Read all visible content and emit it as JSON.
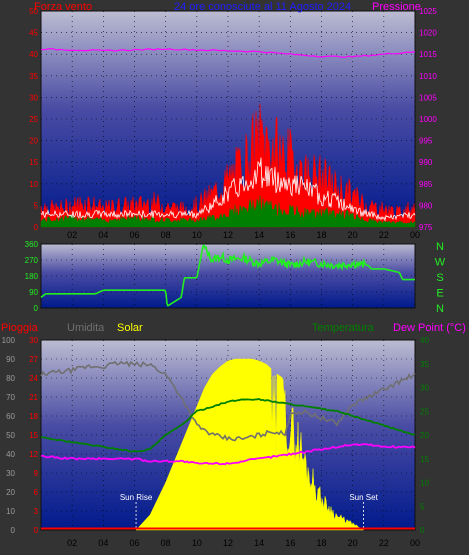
{
  "colors": {
    "background": "#333333",
    "gradient_top": "#bcbcd2",
    "gradient_bottom": "#001a8c",
    "wind": "#ff0000",
    "gust": "#ffffff",
    "avg_wind": "#008000",
    "pressure": "#ff00ff",
    "direction": "#22ee22",
    "rain": "#ff0000",
    "humidity": "#707070",
    "solar": "#ffff00",
    "temperature": "#008000",
    "dewpoint": "#ff00ff",
    "title": "#2020ff"
  },
  "chart_data": [
    {
      "id": "wind-pressure",
      "type": "area",
      "title": "24 ore conosciute al 11 Agosto 2024",
      "left_label": "Forza vento",
      "right_label": "Pressione",
      "x_ticks": [
        "02",
        "04",
        "06",
        "08",
        "10",
        "12",
        "14",
        "16",
        "18",
        "20",
        "22",
        "00"
      ],
      "left_ticks": [
        "0",
        "5",
        "10",
        "15",
        "20",
        "25",
        "30",
        "35",
        "40",
        "45",
        "50"
      ],
      "right_ticks": [
        "975",
        "980",
        "985",
        "990",
        "995",
        "1000",
        "1005",
        "1010",
        "1015",
        "1020",
        "1025"
      ],
      "ylim_left": [
        0,
        50
      ],
      "ylim_right": [
        975,
        1025
      ],
      "grid": true,
      "series": [
        {
          "id": "wind_max",
          "hours": [
            0,
            1,
            2,
            3,
            4,
            5,
            6,
            7,
            8,
            9,
            10,
            11,
            12,
            13,
            14,
            15,
            16,
            17,
            18,
            19,
            20,
            21,
            22,
            23,
            24
          ],
          "values": [
            6,
            5,
            6,
            7,
            5,
            6,
            6,
            7,
            6,
            5,
            6,
            9,
            13,
            18,
            25,
            22,
            19,
            15,
            14,
            11,
            9,
            6,
            5,
            4,
            6
          ]
        },
        {
          "id": "wind_gust",
          "hours": [
            0,
            2,
            4,
            6,
            8,
            10,
            11,
            12,
            13,
            14,
            15,
            16,
            17,
            18,
            19,
            20,
            21,
            22,
            24
          ],
          "values": [
            3,
            3,
            3,
            3,
            3,
            3,
            5,
            8,
            10,
            13,
            11,
            10,
            9,
            7,
            6,
            4,
            3,
            2,
            3
          ]
        },
        {
          "id": "wind_avg",
          "hours": [
            0,
            2,
            4,
            6,
            8,
            10,
            11,
            12,
            13,
            14,
            15,
            16,
            17,
            18,
            19,
            20,
            21,
            22,
            24
          ],
          "values": [
            1.5,
            2,
            1.5,
            2,
            1.5,
            1.5,
            2,
            3,
            4,
            5,
            4,
            3.5,
            3,
            3,
            3,
            2.5,
            1.5,
            1,
            1
          ]
        },
        {
          "id": "pressure",
          "hours": [
            0,
            2,
            4,
            6,
            8,
            10,
            12,
            14,
            16,
            18,
            20,
            22,
            24
          ],
          "values": [
            1016.2,
            1016.0,
            1015.8,
            1016.0,
            1016.2,
            1016.0,
            1015.8,
            1015.6,
            1015.0,
            1014.5,
            1014.4,
            1015.0,
            1015.6
          ]
        }
      ]
    },
    {
      "id": "direction",
      "type": "line",
      "left_ticks": [
        "0",
        "90",
        "180",
        "270",
        "360"
      ],
      "compass": [
        "N",
        "W",
        "S",
        "E",
        "N"
      ],
      "ylim": [
        0,
        360
      ],
      "grid": true,
      "series": [
        {
          "id": "direction",
          "hours": [
            0,
            0.3,
            2,
            3.5,
            4,
            6,
            7,
            8,
            8.1,
            9,
            9.2,
            10,
            10.4,
            11,
            11.5,
            12,
            13,
            14,
            15,
            16,
            17,
            18,
            19,
            20,
            21,
            21.2,
            22,
            23,
            23.2,
            24
          ],
          "values": [
            60,
            80,
            80,
            80,
            100,
            100,
            100,
            100,
            10,
            60,
            170,
            170,
            350,
            270,
            290,
            270,
            280,
            250,
            270,
            240,
            260,
            250,
            240,
            250,
            240,
            220,
            220,
            200,
            160,
            160
          ]
        }
      ]
    },
    {
      "id": "weather",
      "type": "area",
      "legend": [
        "Pioggia",
        "Umidita",
        "Solar",
        "Temperatura",
        "Dew Point (°C)"
      ],
      "x_ticks": [
        "02",
        "04",
        "06",
        "08",
        "10",
        "12",
        "14",
        "16",
        "18",
        "20",
        "22",
        "00"
      ],
      "ticks_humidity": [
        "0",
        "10",
        "20",
        "30",
        "40",
        "50",
        "60",
        "70",
        "80",
        "90",
        "100"
      ],
      "ticks_rain": [
        "0",
        "3",
        "6",
        "9",
        "12",
        "15",
        "18",
        "21",
        "24",
        "27",
        "30"
      ],
      "ticks_temp": [
        "0",
        "5",
        "10",
        "15",
        "20",
        "25",
        "30",
        "35",
        "40"
      ],
      "ylim_humidity": [
        0,
        100
      ],
      "ylim_rain": [
        0,
        30
      ],
      "ylim_temp": [
        0,
        40
      ],
      "sun_rise_label": "Sun Rise",
      "sun_set_label": "Sun Set",
      "sun_rise_hour": 6.1,
      "sun_set_hour": 20.7,
      "grid": true,
      "series": [
        {
          "id": "humidity",
          "hours": [
            0,
            1,
            2,
            3,
            4,
            5,
            6,
            7,
            8,
            9,
            10,
            11,
            12,
            13,
            14,
            15,
            15.7,
            16,
            17,
            18,
            19,
            20,
            21,
            22,
            23,
            24
          ],
          "values": [
            82,
            83,
            84,
            86,
            86,
            88,
            87,
            87,
            82,
            70,
            55,
            50,
            48,
            48,
            50,
            52,
            50,
            62,
            62,
            59,
            56,
            66,
            70,
            74,
            78,
            82
          ]
        },
        {
          "id": "temperature",
          "hours": [
            0,
            2,
            4,
            6,
            7,
            8,
            9,
            10,
            11,
            12,
            13,
            14,
            15,
            16,
            17,
            18,
            19,
            20,
            21,
            22,
            23,
            24
          ],
          "values": [
            19.5,
            18.5,
            17.5,
            16.5,
            17,
            20,
            22,
            25,
            26,
            27,
            27.5,
            27.5,
            27,
            26.5,
            26,
            25.5,
            25,
            24,
            23,
            22,
            21,
            20
          ]
        },
        {
          "id": "dewpoint",
          "hours": [
            0,
            2,
            4,
            6,
            7,
            8,
            9,
            10,
            11,
            12,
            13,
            14,
            15,
            16,
            17,
            18,
            19,
            20,
            21,
            22,
            23,
            24
          ],
          "values": [
            15.5,
            15,
            15,
            15,
            14.5,
            14.5,
            14.5,
            14,
            14,
            14,
            14.5,
            15,
            15.5,
            16,
            16.5,
            17,
            17.5,
            18,
            18,
            17.5,
            17.5,
            17.5
          ]
        },
        {
          "id": "solar",
          "hours": [
            6.1,
            7,
            8,
            9,
            10,
            10.5,
            11,
            11.5,
            12,
            12.5,
            13,
            13.5,
            14,
            14.5,
            15,
            15.5,
            16,
            16.5,
            17,
            18,
            19,
            20,
            20.7
          ],
          "values": [
            0,
            8,
            25,
            45,
            65,
            75,
            82,
            86,
            89,
            90,
            90,
            90,
            89,
            87,
            83,
            80,
            66,
            58,
            42,
            20,
            9,
            4,
            0
          ]
        },
        {
          "id": "rain",
          "hours": [
            0,
            24
          ],
          "values": [
            0,
            0
          ]
        }
      ]
    }
  ]
}
